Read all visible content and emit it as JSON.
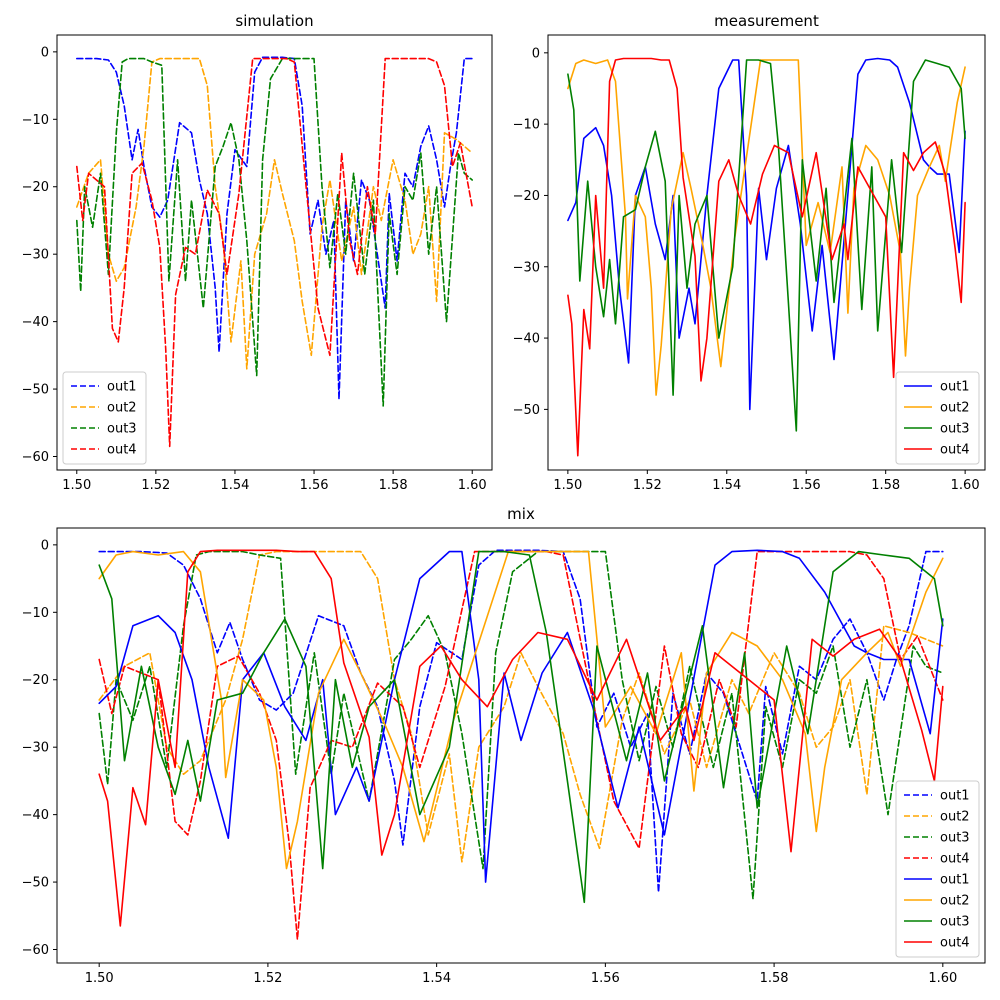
{
  "chart_data": [
    {
      "id": "simulation",
      "type": "line",
      "title": "simulation",
      "xlabel": "",
      "ylabel": "",
      "xlim": [
        1.495,
        1.605
      ],
      "ylim": [
        -62,
        2.5
      ],
      "xticks": [
        1.5,
        1.52,
        1.54,
        1.56,
        1.58,
        1.6
      ],
      "xtick_labels": [
        "1.50",
        "1.52",
        "1.54",
        "1.56",
        "1.58",
        "1.60"
      ],
      "yticks": [
        0,
        -10,
        -20,
        -30,
        -40,
        -50,
        -60
      ],
      "ytick_labels": [
        "0",
        "−10",
        "−20",
        "−30",
        "−40",
        "−50",
        "−60"
      ],
      "legend_position": "lower-left",
      "series": [
        {
          "name": "out1",
          "color": "#0000ff",
          "style": "dashed",
          "x": [
            1.5,
            1.505,
            1.508,
            1.51,
            1.512,
            1.514,
            1.5155,
            1.517,
            1.519,
            1.521,
            1.523,
            1.526,
            1.529,
            1.531,
            1.533,
            1.535,
            1.536,
            1.538,
            1.54,
            1.543,
            1.545,
            1.547,
            1.549,
            1.552,
            1.555,
            1.557,
            1.559,
            1.561,
            1.563,
            1.565,
            1.5663,
            1.568,
            1.57,
            1.572,
            1.574,
            1.576,
            1.578,
            1.579,
            1.581,
            1.583,
            1.585,
            1.587,
            1.589,
            1.591,
            1.593,
            1.5945,
            1.596,
            1.598,
            1.6
          ],
          "y": [
            -1,
            -1,
            -1.2,
            -3,
            -8,
            -16,
            -11.5,
            -17,
            -23,
            -24.5,
            -22,
            -10.5,
            -12,
            -19,
            -24,
            -35,
            -44.5,
            -24,
            -14.5,
            -17,
            -3,
            -0.8,
            -0.8,
            -0.8,
            -1,
            -8,
            -27,
            -22,
            -30,
            -25,
            -51.5,
            -22,
            -31,
            -19,
            -22,
            -30,
            -38,
            -21,
            -31,
            -18,
            -20,
            -14,
            -11,
            -16,
            -23,
            -17,
            -12,
            -1,
            -1
          ]
        },
        {
          "name": "out2",
          "color": "#ffa500",
          "style": "dashed",
          "x": [
            1.5,
            1.503,
            1.506,
            1.508,
            1.51,
            1.512,
            1.515,
            1.517,
            1.519,
            1.521,
            1.523,
            1.525,
            1.528,
            1.531,
            1.533,
            1.535,
            1.537,
            1.539,
            1.5415,
            1.543,
            1.545,
            1.548,
            1.55,
            1.552,
            1.555,
            1.557,
            1.5593,
            1.562,
            1.564,
            1.567,
            1.57,
            1.572,
            1.575,
            1.577,
            1.58,
            1.583,
            1.585,
            1.587,
            1.589,
            1.591,
            1.593,
            1.596,
            1.6
          ],
          "y": [
            -23,
            -18,
            -16,
            -30,
            -34,
            -32,
            -23,
            -14,
            -1.5,
            -1,
            -1,
            -1,
            -1,
            -1,
            -5,
            -20,
            -28,
            -43,
            -31,
            -47,
            -30,
            -24,
            -16,
            -21,
            -28,
            -37,
            -45,
            -26,
            -19,
            -31,
            -23,
            -33,
            -20,
            -25,
            -16,
            -22,
            -30,
            -27,
            -20,
            -37,
            -12,
            -13,
            -15
          ]
        },
        {
          "name": "out3",
          "color": "#008000",
          "style": "dashed",
          "x": [
            1.5,
            1.501,
            1.502,
            1.504,
            1.506,
            1.508,
            1.51,
            1.5115,
            1.513,
            1.515,
            1.517,
            1.519,
            1.5215,
            1.5233,
            1.5255,
            1.5275,
            1.529,
            1.532,
            1.535,
            1.537,
            1.539,
            1.541,
            1.543,
            1.5455,
            1.547,
            1.549,
            1.552,
            1.555,
            1.558,
            1.56,
            1.562,
            1.564,
            1.566,
            1.568,
            1.57,
            1.5728,
            1.575,
            1.5775,
            1.579,
            1.581,
            1.583,
            1.585,
            1.587,
            1.589,
            1.591,
            1.5935,
            1.5965,
            1.598,
            1.6
          ],
          "y": [
            -25,
            -35.5,
            -20,
            -26,
            -18,
            -33,
            -12,
            -1.5,
            -1,
            -1,
            -1,
            -1.5,
            -2,
            -34,
            -16,
            -34,
            -22,
            -38,
            -17,
            -14,
            -10.5,
            -16,
            -28,
            -48,
            -16,
            -4,
            -1,
            -1,
            -1,
            -1,
            -20,
            -32,
            -21,
            -30,
            -18,
            -33,
            -22,
            -52.5,
            -24,
            -33,
            -20,
            -22,
            -15,
            -30,
            -20,
            -40,
            -15,
            -18,
            -19
          ]
        },
        {
          "name": "out4",
          "color": "#ff0000",
          "style": "dashed",
          "x": [
            1.5,
            1.5015,
            1.503,
            1.505,
            1.507,
            1.509,
            1.5105,
            1.512,
            1.514,
            1.5165,
            1.519,
            1.521,
            1.5225,
            1.5235,
            1.525,
            1.5275,
            1.53,
            1.533,
            1.536,
            1.538,
            1.541,
            1.5445,
            1.546,
            1.5485,
            1.551,
            1.553,
            1.555,
            1.558,
            1.561,
            1.564,
            1.567,
            1.569,
            1.571,
            1.5735,
            1.5755,
            1.578,
            1.581,
            1.584,
            1.587,
            1.589,
            1.591,
            1.593,
            1.595,
            1.597,
            1.6
          ],
          "y": [
            -17,
            -25,
            -18,
            -19,
            -20,
            -41,
            -43,
            -35,
            -18,
            -16.5,
            -22,
            -29,
            -44,
            -58.5,
            -36,
            -29,
            -30,
            -20.5,
            -24,
            -33,
            -21,
            -1,
            -1,
            -1,
            -1,
            -1,
            -1.5,
            -20,
            -38,
            -45,
            -15,
            -28,
            -33,
            -20,
            -27,
            -1,
            -1,
            -1,
            -1,
            -1,
            -1.5,
            -5,
            -17,
            -13.5,
            -23
          ]
        }
      ]
    },
    {
      "id": "measurement",
      "type": "line",
      "title": "measurement",
      "xlabel": "",
      "ylabel": "",
      "xlim": [
        1.495,
        1.605
      ],
      "ylim": [
        -58.5,
        2.5
      ],
      "xticks": [
        1.5,
        1.52,
        1.54,
        1.56,
        1.58,
        1.6
      ],
      "xtick_labels": [
        "1.50",
        "1.52",
        "1.54",
        "1.56",
        "1.58",
        "1.60"
      ],
      "yticks": [
        0,
        -10,
        -20,
        -30,
        -40,
        -50
      ],
      "ytick_labels": [
        "0",
        "−10",
        "−20",
        "−30",
        "−40",
        "−50"
      ],
      "legend_position": "lower-right",
      "series": [
        {
          "name": "out1",
          "color": "#0000ff",
          "style": "solid",
          "x": [
            1.5,
            1.502,
            1.504,
            1.507,
            1.509,
            1.511,
            1.513,
            1.5153,
            1.517,
            1.5195,
            1.522,
            1.5245,
            1.5265,
            1.528,
            1.5305,
            1.532,
            1.535,
            1.538,
            1.5415,
            1.543,
            1.545,
            1.5458,
            1.548,
            1.55,
            1.5525,
            1.5555,
            1.5585,
            1.5615,
            1.564,
            1.567,
            1.57,
            1.573,
            1.575,
            1.578,
            1.581,
            1.583,
            1.586,
            1.5895,
            1.591,
            1.593,
            1.596,
            1.5985,
            1.6
          ],
          "y": [
            -23.5,
            -21,
            -12,
            -10.5,
            -13,
            -20,
            -33,
            -43.5,
            -20,
            -16,
            -24,
            -29,
            -20,
            -40,
            -33,
            -38,
            -20,
            -5,
            -1,
            -1,
            -20,
            -50,
            -19,
            -29,
            -19,
            -13,
            -24,
            -39,
            -27,
            -43,
            -23,
            -3,
            -1,
            -0.8,
            -1,
            -2,
            -7,
            -15,
            -16,
            -17,
            -17,
            -28,
            -11
          ]
        },
        {
          "name": "out2",
          "color": "#ffa500",
          "style": "solid",
          "x": [
            1.5,
            1.502,
            1.504,
            1.507,
            1.51,
            1.512,
            1.5145,
            1.515,
            1.517,
            1.5195,
            1.521,
            1.5222,
            1.5235,
            1.526,
            1.529,
            1.531,
            1.534,
            1.536,
            1.5385,
            1.542,
            1.5485,
            1.552,
            1.555,
            1.558,
            1.56,
            1.563,
            1.566,
            1.569,
            1.5705,
            1.572,
            1.575,
            1.578,
            1.581,
            1.5837,
            1.585,
            1.586,
            1.588,
            1.591,
            1.5935,
            1.595,
            1.598,
            1.6
          ],
          "y": [
            -5,
            -1.5,
            -1,
            -1.5,
            -1,
            -4,
            -23,
            -34.5,
            -20,
            -23,
            -33,
            -48,
            -41,
            -22,
            -14,
            -19,
            -27,
            -33,
            -44,
            -26,
            -1,
            -1,
            -1,
            -1,
            -27,
            -21,
            -28,
            -16,
            -36.5,
            -19,
            -13,
            -15,
            -20,
            -28,
            -42.5,
            -33,
            -20,
            -16,
            -13,
            -18,
            -7,
            -2
          ]
        },
        {
          "name": "out3",
          "color": "#008000",
          "style": "solid",
          "x": [
            1.5,
            1.5015,
            1.503,
            1.505,
            1.507,
            1.509,
            1.5105,
            1.512,
            1.514,
            1.517,
            1.5195,
            1.522,
            1.5245,
            1.5265,
            1.528,
            1.53,
            1.532,
            1.535,
            1.538,
            1.5415,
            1.545,
            1.548,
            1.551,
            1.553,
            1.5555,
            1.5575,
            1.559,
            1.5625,
            1.565,
            1.567,
            1.5715,
            1.574,
            1.5765,
            1.578,
            1.5815,
            1.584,
            1.587,
            1.59,
            1.593,
            1.596,
            1.599,
            1.6
          ],
          "y": [
            -3,
            -8,
            -32,
            -18,
            -30,
            -37,
            -29,
            -38,
            -23,
            -22,
            -16,
            -11,
            -18,
            -48,
            -20,
            -33,
            -24,
            -20,
            -40,
            -30,
            -1,
            -1,
            -1.5,
            -13,
            -35,
            -53,
            -15,
            -32,
            -19,
            -35,
            -12,
            -36,
            -16,
            -39,
            -15,
            -28,
            -4,
            -1,
            -1.5,
            -2,
            -5,
            -12
          ]
        },
        {
          "name": "out4",
          "color": "#ff0000",
          "style": "solid",
          "x": [
            1.5,
            1.501,
            1.5025,
            1.504,
            1.5055,
            1.507,
            1.509,
            1.5105,
            1.512,
            1.514,
            1.5165,
            1.519,
            1.521,
            1.5235,
            1.5255,
            1.5275,
            1.529,
            1.532,
            1.5335,
            1.535,
            1.538,
            1.5405,
            1.543,
            1.546,
            1.549,
            1.552,
            1.5555,
            1.559,
            1.5625,
            1.5665,
            1.5695,
            1.5705,
            1.573,
            1.577,
            1.58,
            1.582,
            1.5845,
            1.587,
            1.5895,
            1.5925,
            1.595,
            1.5975,
            1.599,
            1.6
          ],
          "y": [
            -34,
            -38,
            -56.5,
            -36,
            -41.5,
            -20,
            -33,
            -4,
            -1,
            -0.8,
            -0.8,
            -0.8,
            -0.8,
            -1,
            -1,
            -5,
            -17.5,
            -28.5,
            -46,
            -40,
            -18,
            -15,
            -20,
            -24,
            -17,
            -13,
            -14,
            -23,
            -14,
            -29,
            -24,
            -29,
            -16,
            -20,
            -23,
            -45.5,
            -14,
            -16.5,
            -14,
            -12.5,
            -17,
            -27.5,
            -35,
            -21
          ]
        }
      ]
    },
    {
      "id": "mix",
      "type": "line",
      "title": "mix",
      "xlabel": "",
      "ylabel": "",
      "xlim": [
        1.495,
        1.605
      ],
      "ylim": [
        -62,
        2.5
      ],
      "xticks": [
        1.5,
        1.52,
        1.54,
        1.56,
        1.58,
        1.6
      ],
      "xtick_labels": [
        "1.50",
        "1.52",
        "1.54",
        "1.56",
        "1.58",
        "1.60"
      ],
      "yticks": [
        0,
        -10,
        -20,
        -30,
        -40,
        -50,
        -60
      ],
      "ytick_labels": [
        "0",
        "−10",
        "−20",
        "−30",
        "−40",
        "−50",
        "−60"
      ],
      "legend_position": "lower-right",
      "series_refs": [
        {
          "chart": 0,
          "series": 0
        },
        {
          "chart": 0,
          "series": 1
        },
        {
          "chart": 0,
          "series": 2
        },
        {
          "chart": 0,
          "series": 3
        },
        {
          "chart": 1,
          "series": 0
        },
        {
          "chart": 1,
          "series": 1
        },
        {
          "chart": 1,
          "series": 2
        },
        {
          "chart": 1,
          "series": 3
        }
      ],
      "legend_labels": [
        "out1",
        "out2",
        "out3",
        "out4",
        "out1",
        "out2",
        "out3",
        "out4"
      ]
    }
  ]
}
